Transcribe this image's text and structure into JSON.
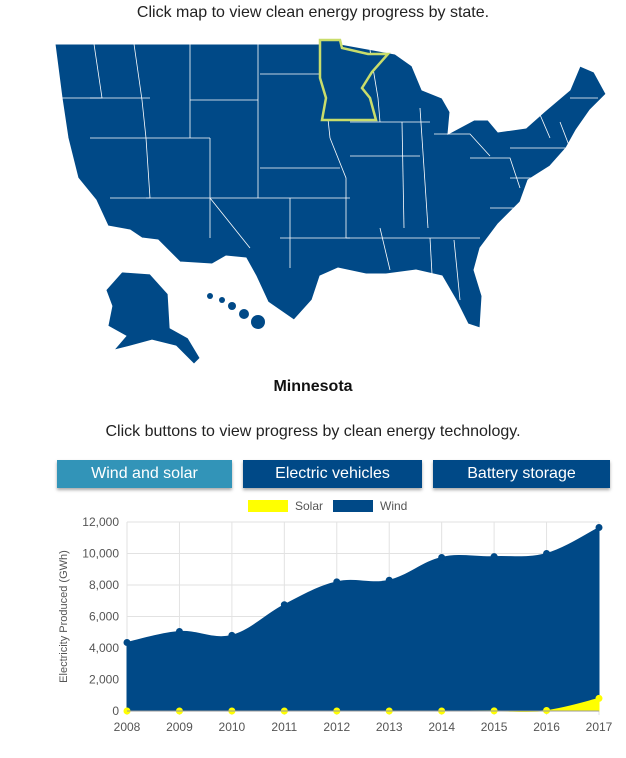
{
  "header": {
    "map_instruction": "Click map to view clean energy progress by state.",
    "selected_state": "Minnesota",
    "tech_instruction": "Click buttons to view progress by clean energy technology."
  },
  "buttons": [
    {
      "label": "Wind and solar",
      "color": "#3294b8",
      "active": true
    },
    {
      "label": "Electric vehicles",
      "color": "#004987",
      "active": false
    },
    {
      "label": "Battery storage",
      "color": "#004987",
      "active": false
    }
  ],
  "map": {
    "fill": "#004987",
    "border": "#ffffff",
    "highlight": "#c9dd6b",
    "selected": "Minnesota"
  },
  "chart_data": {
    "type": "area",
    "title": "",
    "xlabel": "",
    "ylabel": "Electricity Produced (GWh)",
    "x": [
      "2008",
      "2009",
      "2010",
      "2011",
      "2012",
      "2013",
      "2014",
      "2015",
      "2016",
      "2017"
    ],
    "ylim": [
      0,
      12000
    ],
    "yticks": [
      "0",
      "2,000",
      "4,000",
      "6,000",
      "8,000",
      "10,000",
      "12,000"
    ],
    "grid": true,
    "legend_position": "top",
    "series": [
      {
        "name": "Solar",
        "color": "#ffff00",
        "values": [
          0,
          0,
          0,
          0,
          0,
          0,
          0,
          10,
          30,
          800
        ]
      },
      {
        "name": "Wind",
        "color": "#004987",
        "values": [
          4350,
          5050,
          4800,
          6750,
          8200,
          8300,
          9750,
          9800,
          10000,
          11650
        ]
      }
    ]
  }
}
